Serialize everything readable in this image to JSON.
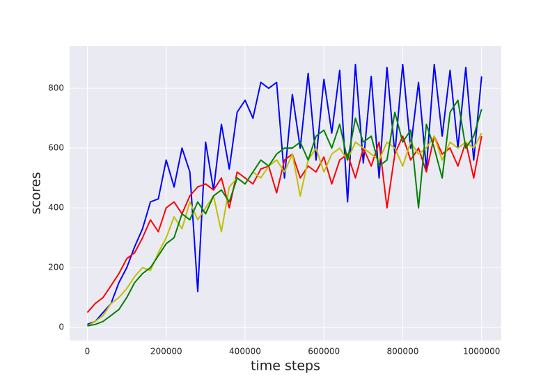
{
  "chart_data": {
    "type": "line",
    "xlabel": "time steps",
    "ylabel": "scores",
    "x": [
      0,
      20000,
      40000,
      60000,
      80000,
      100000,
      120000,
      140000,
      160000,
      180000,
      200000,
      220000,
      240000,
      260000,
      280000,
      300000,
      320000,
      340000,
      360000,
      380000,
      400000,
      420000,
      440000,
      460000,
      480000,
      500000,
      520000,
      540000,
      560000,
      580000,
      600000,
      620000,
      640000,
      660000,
      680000,
      700000,
      720000,
      740000,
      760000,
      780000,
      800000,
      820000,
      840000,
      860000,
      880000,
      900000,
      920000,
      940000,
      960000,
      980000,
      1000000
    ],
    "series": [
      {
        "color": "#0000ff",
        "values": [
          10,
          20,
          50,
          80,
          150,
          200,
          270,
          330,
          420,
          430,
          560,
          470,
          600,
          520,
          120,
          620,
          460,
          680,
          530,
          720,
          760,
          700,
          820,
          800,
          820,
          500,
          780,
          600,
          850,
          560,
          830,
          650,
          860,
          420,
          880,
          550,
          840,
          500,
          870,
          580,
          880,
          600,
          820,
          530,
          880,
          640,
          860,
          600,
          870,
          560,
          840
        ]
      },
      {
        "color": "#ff0000",
        "values": [
          50,
          80,
          100,
          140,
          180,
          230,
          250,
          300,
          360,
          320,
          400,
          420,
          380,
          440,
          470,
          480,
          460,
          500,
          400,
          520,
          500,
          480,
          530,
          540,
          450,
          560,
          580,
          500,
          540,
          520,
          570,
          480,
          560,
          580,
          500,
          600,
          540,
          620,
          400,
          580,
          640,
          560,
          600,
          520,
          640,
          580,
          600,
          540,
          620,
          500,
          640
        ]
      },
      {
        "color": "#bfbf00",
        "values": [
          5,
          20,
          40,
          80,
          100,
          130,
          170,
          200,
          190,
          250,
          300,
          370,
          330,
          420,
          360,
          400,
          440,
          320,
          470,
          500,
          480,
          520,
          500,
          540,
          560,
          520,
          580,
          440,
          560,
          600,
          520,
          580,
          600,
          560,
          620,
          600,
          580,
          560,
          620,
          600,
          540,
          620,
          580,
          600,
          640,
          560,
          620,
          600,
          620,
          600,
          650
        ]
      },
      {
        "color": "#008000",
        "values": [
          5,
          10,
          20,
          40,
          60,
          100,
          150,
          180,
          200,
          240,
          280,
          300,
          380,
          360,
          420,
          380,
          440,
          460,
          420,
          500,
          480,
          520,
          560,
          540,
          580,
          600,
          600,
          620,
          560,
          640,
          660,
          600,
          680,
          560,
          700,
          620,
          640,
          540,
          560,
          720,
          620,
          660,
          400,
          680,
          600,
          500,
          720,
          760,
          600,
          640,
          730
        ]
      }
    ],
    "xlim": [
      -45000,
      1050000
    ],
    "xticks": [
      0,
      200000,
      400000,
      600000,
      800000,
      1000000
    ],
    "ylim": [
      -44,
      942
    ],
    "yticks": [
      0,
      200,
      400,
      600,
      800
    ],
    "grid": true
  }
}
